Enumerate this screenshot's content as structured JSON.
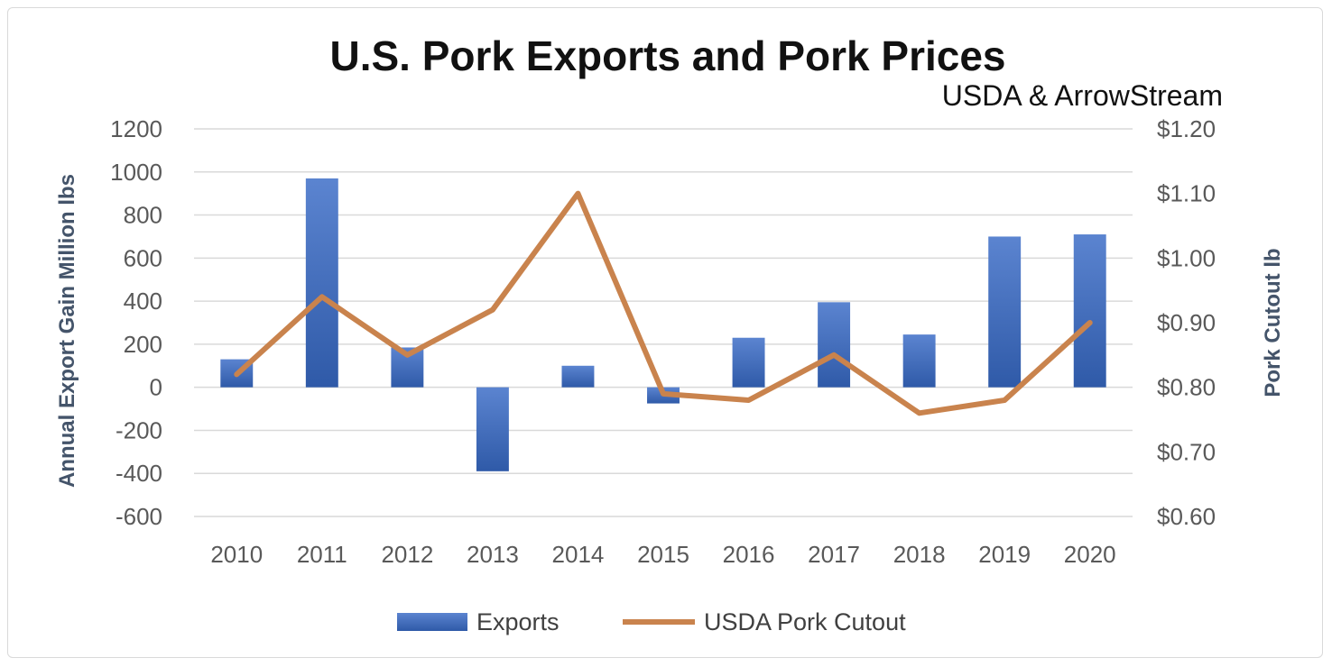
{
  "chart_data": {
    "type": "bar+line",
    "title": "U.S. Pork Exports and Pork Prices",
    "subtitle": "USDA & ArrowStream",
    "categories": [
      "2010",
      "2011",
      "2012",
      "2013",
      "2014",
      "2015",
      "2016",
      "2017",
      "2018",
      "2019",
      "2020"
    ],
    "ylabel_left": "Annual Export Gain Million lbs",
    "ylabel_right": "Pork Cutout lb",
    "ylim_left": [
      -600,
      1200
    ],
    "ylim_right": [
      0.6,
      1.2
    ],
    "yticks_left": [
      "1200",
      "1000",
      "800",
      "600",
      "400",
      "200",
      "0",
      "-200",
      "-400",
      "-600"
    ],
    "yticks_right": [
      "$1.20",
      "$1.10",
      "$1.00",
      "$0.90",
      "$0.80",
      "$0.70",
      "$0.60"
    ],
    "grid": true,
    "legend_position": "bottom",
    "series": [
      {
        "name": "Exports",
        "type": "bar",
        "axis": "left",
        "color": "#4472c4",
        "values": [
          130,
          970,
          185,
          -390,
          100,
          -75,
          230,
          395,
          245,
          700,
          710
        ]
      },
      {
        "name": "USDA Pork Cutout",
        "type": "line",
        "axis": "right",
        "color": "#c9834d",
        "values": [
          0.82,
          0.94,
          0.85,
          0.92,
          1.1,
          0.79,
          0.78,
          0.85,
          0.76,
          0.78,
          0.9
        ]
      }
    ]
  }
}
